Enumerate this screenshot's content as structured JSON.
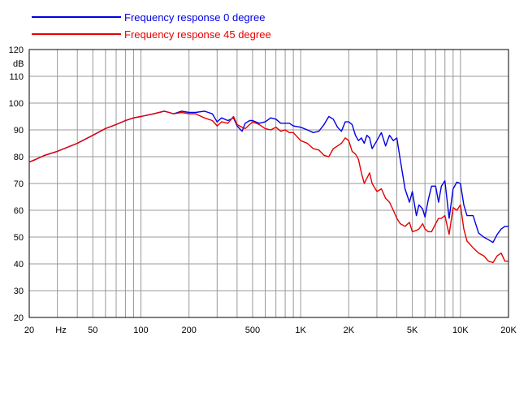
{
  "chart_data": {
    "type": "line",
    "xscale": "log",
    "xlim": [
      20,
      20000
    ],
    "ylim": [
      20,
      120
    ],
    "ylabel": "dB",
    "xunit_label": "Hz",
    "grid": true,
    "legend_position": "top-left",
    "x_ticks": [
      {
        "value": 20,
        "label": "20"
      },
      {
        "value": 50,
        "label": "50"
      },
      {
        "value": 100,
        "label": "100"
      },
      {
        "value": 200,
        "label": "200"
      },
      {
        "value": 500,
        "label": "500"
      },
      {
        "value": 1000,
        "label": "1K"
      },
      {
        "value": 2000,
        "label": "2K"
      },
      {
        "value": 5000,
        "label": "5K"
      },
      {
        "value": 10000,
        "label": "10K"
      },
      {
        "value": 20000,
        "label": "20K"
      }
    ],
    "y_ticks": [
      20,
      30,
      40,
      50,
      60,
      70,
      80,
      90,
      100,
      110,
      120
    ],
    "series": [
      {
        "name": "Frequency response 0 degree",
        "color": "#0000e6",
        "x": [
          20,
          22,
          25,
          30,
          40,
          50,
          60,
          70,
          80,
          90,
          100,
          120,
          140,
          150,
          160,
          180,
          200,
          220,
          250,
          280,
          300,
          320,
          350,
          380,
          400,
          430,
          450,
          480,
          500,
          550,
          600,
          650,
          700,
          750,
          800,
          850,
          900,
          1000,
          1100,
          1200,
          1300,
          1400,
          1500,
          1600,
          1700,
          1800,
          1900,
          2000,
          2100,
          2200,
          2300,
          2400,
          2500,
          2600,
          2700,
          2800,
          3000,
          3200,
          3400,
          3600,
          3800,
          4000,
          4200,
          4500,
          4800,
          5000,
          5300,
          5500,
          5800,
          6000,
          6300,
          6600,
          7000,
          7300,
          7600,
          8000,
          8500,
          9000,
          9500,
          10000,
          10500,
          11000,
          12000,
          13000,
          14000,
          15000,
          16000,
          17000,
          18000,
          19000,
          20000
        ],
        "values": [
          78,
          79,
          80.5,
          82,
          85,
          88,
          90.5,
          92,
          93.5,
          94.5,
          95,
          96,
          97,
          96.5,
          96,
          97,
          96.5,
          96.5,
          97,
          96,
          93,
          94.5,
          93.5,
          94.5,
          91.5,
          89.5,
          92.5,
          93.5,
          93.5,
          92.5,
          93,
          94.5,
          94,
          92.5,
          92.5,
          92.5,
          91.5,
          91,
          90,
          89,
          89.5,
          92,
          95,
          94,
          91,
          89.5,
          93,
          93,
          92,
          88,
          86,
          87,
          85,
          88,
          87,
          83,
          86,
          89,
          84,
          88,
          86,
          87,
          79,
          68,
          63,
          67,
          58,
          62,
          60.5,
          57.5,
          64,
          69,
          69,
          63,
          69,
          71,
          57,
          68,
          70.5,
          70,
          62,
          58,
          58,
          51.5,
          50,
          49,
          48,
          51,
          53,
          54,
          54
        ]
      },
      {
        "name": "Frequency response 45 degree",
        "color": "#e60000",
        "x": [
          20,
          22,
          25,
          30,
          40,
          50,
          60,
          70,
          80,
          90,
          100,
          120,
          140,
          150,
          160,
          180,
          200,
          220,
          250,
          280,
          300,
          320,
          350,
          380,
          400,
          430,
          450,
          480,
          500,
          550,
          600,
          650,
          700,
          750,
          800,
          850,
          900,
          1000,
          1100,
          1200,
          1300,
          1400,
          1500,
          1600,
          1700,
          1800,
          1900,
          2000,
          2100,
          2200,
          2300,
          2400,
          2500,
          2600,
          2700,
          2800,
          3000,
          3200,
          3400,
          3600,
          3800,
          4000,
          4200,
          4500,
          4800,
          5000,
          5300,
          5500,
          5800,
          6000,
          6300,
          6600,
          7000,
          7300,
          7600,
          8000,
          8500,
          9000,
          9500,
          10000,
          10500,
          11000,
          12000,
          13000,
          14000,
          15000,
          16000,
          17000,
          18000,
          19000,
          20000
        ],
        "values": [
          78,
          79,
          80.5,
          82,
          85,
          88,
          90.5,
          92,
          93.5,
          94.5,
          95,
          96,
          97,
          96.5,
          96,
          96.5,
          96,
          96,
          94.5,
          93.5,
          91.5,
          93,
          92.5,
          95,
          92,
          91,
          90.5,
          92,
          93,
          92,
          90.5,
          90,
          91,
          89.5,
          90,
          89,
          89,
          86,
          85,
          83,
          82.5,
          80.5,
          80,
          83,
          84,
          85,
          87,
          86,
          82,
          81,
          79,
          74,
          70,
          72,
          74,
          70,
          67,
          68,
          64.5,
          63,
          60,
          57,
          55,
          54,
          55.5,
          52,
          52.5,
          53,
          55,
          53,
          52,
          52,
          55,
          57,
          57,
          58,
          51,
          61,
          60,
          62,
          53,
          48.5,
          46,
          44,
          43,
          41,
          40.5,
          43,
          44,
          41,
          41
        ]
      }
    ]
  }
}
